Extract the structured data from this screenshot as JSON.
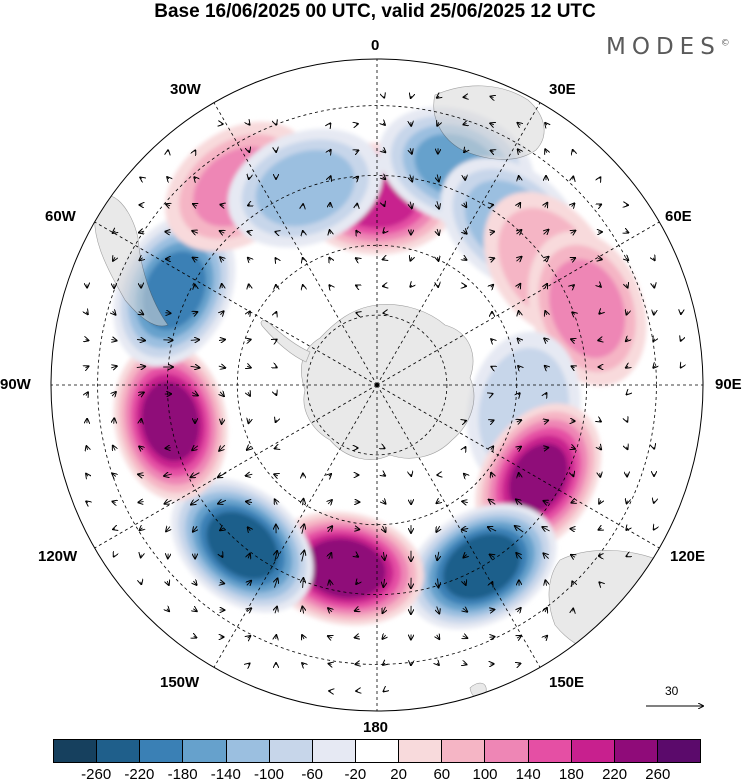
{
  "title": "Base 16/06/2025 00 UTC, valid 25/06/2025 12 UTC",
  "brand": "MODES",
  "brand_mark": "©",
  "longitude_labels": [
    "0",
    "30E",
    "60E",
    "90E",
    "120E",
    "150E",
    "180",
    "150W",
    "120W",
    "90W",
    "60W",
    "30W"
  ],
  "vector_reference": "30",
  "colorbar": {
    "ticks": [
      "-260",
      "-220",
      "-180",
      "-140",
      "-100",
      "-60",
      "-20",
      "20",
      "60",
      "100",
      "140",
      "180",
      "220",
      "260"
    ],
    "colors": [
      "#16405e",
      "#1f5f8b",
      "#3a80b5",
      "#66a1cc",
      "#9bbfe0",
      "#c7d6ea",
      "#e6e9f3",
      "#ffffff",
      "#f8dadc",
      "#f5b5c5",
      "#ee86b5",
      "#e54fa4",
      "#c8208e",
      "#8f0b79",
      "#5b0a6b"
    ]
  },
  "colors": {
    "land": "#e2e2e2",
    "frame": "#000000"
  },
  "anomalies": [
    {
      "lon": 0,
      "lat": -50,
      "value": 200
    },
    {
      "lon": 20,
      "lat": -40,
      "value": -150
    },
    {
      "lon": 40,
      "lat": -45,
      "value": -130
    },
    {
      "lon": 55,
      "lat": -45,
      "value": 90
    },
    {
      "lon": 70,
      "lat": -42,
      "value": 120
    },
    {
      "lon": 100,
      "lat": -58,
      "value": -100
    },
    {
      "lon": 120,
      "lat": -50,
      "value": 230
    },
    {
      "lon": 150,
      "lat": -45,
      "value": -260
    },
    {
      "lon": -170,
      "lat": -50,
      "value": 260
    },
    {
      "lon": -140,
      "lat": -45,
      "value": -250
    },
    {
      "lon": -100,
      "lat": -45,
      "value": 250
    },
    {
      "lon": -65,
      "lat": -42,
      "value": -200
    },
    {
      "lon": -35,
      "lat": -38,
      "value": 110
    },
    {
      "lon": -20,
      "lat": -45,
      "value": -120
    }
  ]
}
